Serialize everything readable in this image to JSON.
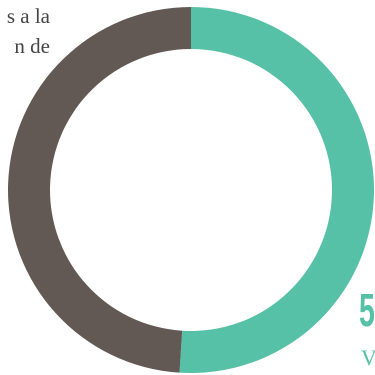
{
  "caption": {
    "line1": "s a la",
    "line2": "n de"
  },
  "stat": {
    "value": "5",
    "label": "V"
  },
  "colors": {
    "accent": "#56c1a7",
    "remainder": "#625854",
    "text": "#444444"
  },
  "chart_data": {
    "type": "pie",
    "subtype": "donut",
    "title": "",
    "categories": [
      "",
      ""
    ],
    "values": [
      51,
      49
    ],
    "colors": [
      "#56c1a7",
      "#625854"
    ],
    "start": "12 o'clock",
    "direction": "clockwise",
    "legend": "none"
  }
}
